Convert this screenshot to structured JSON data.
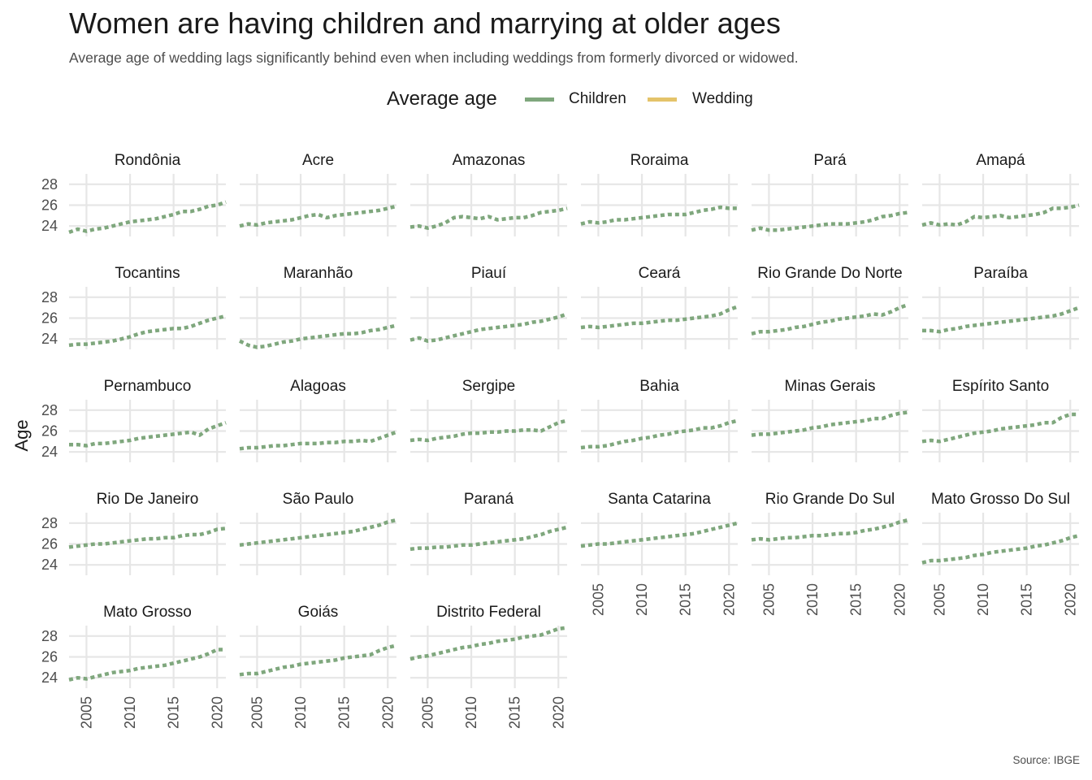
{
  "title": "Women are having children and marrying at older ages",
  "subtitle": "Average age of wedding lags significantly behind even when including weddings from formerly divorced or widowed.",
  "caption": "Source: IBGE",
  "legend": {
    "title": "Average age",
    "items": [
      {
        "label": "Children",
        "color": "#7fa77d"
      },
      {
        "label": "Wedding",
        "color": "#e4c36a"
      }
    ]
  },
  "chart_data": {
    "type": "line",
    "facet": "state",
    "ylabel": "Age",
    "xlabel": "",
    "ylim": [
      23,
      29
    ],
    "xlim": [
      2003,
      2021
    ],
    "x_ticks": [
      2005,
      2010,
      2015,
      2020
    ],
    "y_ticks": [
      24,
      26,
      28
    ],
    "grid": true,
    "legend_position": "top",
    "x": [
      2003,
      2004,
      2005,
      2006,
      2007,
      2008,
      2009,
      2010,
      2011,
      2012,
      2013,
      2014,
      2015,
      2016,
      2017,
      2018,
      2019,
      2020,
      2021
    ],
    "series_names": [
      "Children",
      "Wedding"
    ],
    "panels": [
      {
        "name": "Rondônia",
        "children": [
          23.4,
          23.7,
          23.5,
          23.7,
          23.8,
          24.0,
          24.2,
          24.4,
          24.5,
          24.6,
          24.7,
          24.9,
          25.1,
          25.4,
          25.4,
          25.6,
          25.9,
          26.0,
          26.3
        ]
      },
      {
        "name": "Acre",
        "children": [
          24.0,
          24.2,
          24.1,
          24.3,
          24.4,
          24.5,
          24.6,
          24.8,
          25.0,
          25.1,
          24.8,
          25.0,
          25.1,
          25.2,
          25.3,
          25.4,
          25.5,
          25.7,
          25.9
        ]
      },
      {
        "name": "Amazonas",
        "children": [
          23.9,
          24.0,
          23.8,
          24.0,
          24.3,
          24.8,
          24.9,
          24.8,
          24.7,
          24.9,
          24.6,
          24.7,
          24.8,
          24.8,
          25.0,
          25.3,
          25.4,
          25.5,
          25.7
        ]
      },
      {
        "name": "Roraima",
        "children": [
          24.2,
          24.4,
          24.3,
          24.4,
          24.6,
          24.6,
          24.7,
          24.8,
          24.9,
          25.0,
          25.1,
          25.1,
          25.1,
          25.3,
          25.5,
          25.6,
          25.8,
          25.7,
          25.7
        ]
      },
      {
        "name": "Pará",
        "children": [
          23.6,
          23.8,
          23.6,
          23.6,
          23.7,
          23.8,
          23.9,
          24.0,
          24.1,
          24.2,
          24.2,
          24.2,
          24.3,
          24.4,
          24.6,
          24.9,
          25.0,
          25.2,
          25.3
        ]
      },
      {
        "name": "Amapá",
        "children": [
          24.1,
          24.3,
          24.1,
          24.2,
          24.1,
          24.4,
          24.9,
          24.8,
          24.9,
          25.0,
          24.8,
          24.9,
          25.0,
          25.1,
          25.3,
          25.7,
          25.7,
          25.8,
          26.0
        ]
      },
      {
        "name": "Tocantins",
        "children": [
          23.4,
          23.5,
          23.5,
          23.6,
          23.7,
          23.8,
          24.0,
          24.2,
          24.5,
          24.7,
          24.8,
          24.9,
          25.0,
          25.0,
          25.2,
          25.5,
          25.8,
          26.0,
          26.2
        ]
      },
      {
        "name": "Maranhão",
        "children": [
          23.8,
          23.4,
          23.2,
          23.3,
          23.5,
          23.7,
          23.8,
          24.0,
          24.1,
          24.2,
          24.3,
          24.4,
          24.5,
          24.5,
          24.6,
          24.8,
          24.9,
          25.1,
          25.3
        ]
      },
      {
        "name": "Piauí",
        "children": [
          23.9,
          24.1,
          23.8,
          23.9,
          24.1,
          24.3,
          24.5,
          24.7,
          24.9,
          25.0,
          25.1,
          25.2,
          25.3,
          25.4,
          25.6,
          25.7,
          25.9,
          26.1,
          26.4
        ]
      },
      {
        "name": "Ceará",
        "children": [
          25.1,
          25.2,
          25.1,
          25.2,
          25.3,
          25.4,
          25.5,
          25.5,
          25.6,
          25.7,
          25.8,
          25.8,
          25.9,
          26.0,
          26.1,
          26.2,
          26.4,
          26.8,
          27.1
        ]
      },
      {
        "name": "Rio Grande Do Norte",
        "children": [
          24.5,
          24.7,
          24.7,
          24.8,
          24.9,
          25.1,
          25.2,
          25.4,
          25.6,
          25.7,
          25.9,
          26.0,
          26.1,
          26.2,
          26.4,
          26.3,
          26.6,
          27.0,
          27.3
        ]
      },
      {
        "name": "Paraíba",
        "children": [
          24.8,
          24.8,
          24.7,
          24.9,
          25.0,
          25.2,
          25.3,
          25.4,
          25.5,
          25.6,
          25.7,
          25.8,
          25.9,
          26.0,
          26.1,
          26.2,
          26.4,
          26.7,
          27.0
        ]
      },
      {
        "name": "Pernambuco",
        "children": [
          24.7,
          24.7,
          24.6,
          24.8,
          24.8,
          24.9,
          25.0,
          25.1,
          25.3,
          25.4,
          25.5,
          25.6,
          25.7,
          25.8,
          25.9,
          25.6,
          26.2,
          26.5,
          26.8
        ]
      },
      {
        "name": "Alagoas",
        "children": [
          24.3,
          24.4,
          24.4,
          24.5,
          24.6,
          24.6,
          24.7,
          24.8,
          24.8,
          24.8,
          24.9,
          24.9,
          25.0,
          25.0,
          25.1,
          25.0,
          25.3,
          25.6,
          25.9
        ]
      },
      {
        "name": "Sergipe",
        "children": [
          25.1,
          25.2,
          25.1,
          25.3,
          25.4,
          25.5,
          25.7,
          25.8,
          25.8,
          25.9,
          25.9,
          26.0,
          26.0,
          26.1,
          26.1,
          26.0,
          26.4,
          26.8,
          27.0
        ]
      },
      {
        "name": "Bahia",
        "children": [
          24.4,
          24.5,
          24.5,
          24.6,
          24.8,
          25.0,
          25.1,
          25.3,
          25.4,
          25.6,
          25.7,
          25.9,
          26.0,
          26.1,
          26.3,
          26.3,
          26.5,
          26.8,
          27.0
        ]
      },
      {
        "name": "Minas Gerais",
        "children": [
          25.6,
          25.7,
          25.7,
          25.8,
          25.9,
          26.0,
          26.1,
          26.3,
          26.4,
          26.6,
          26.7,
          26.8,
          26.9,
          27.0,
          27.2,
          27.2,
          27.5,
          27.7,
          27.8
        ]
      },
      {
        "name": "Espírito Santo",
        "children": [
          25.0,
          25.1,
          25.0,
          25.2,
          25.4,
          25.6,
          25.8,
          25.9,
          26.0,
          26.2,
          26.3,
          26.4,
          26.5,
          26.6,
          26.8,
          26.8,
          27.3,
          27.6,
          27.6
        ]
      },
      {
        "name": "Rio De Janeiro",
        "children": [
          25.7,
          25.8,
          25.9,
          26.0,
          26.0,
          26.1,
          26.2,
          26.3,
          26.4,
          26.5,
          26.5,
          26.6,
          26.6,
          26.8,
          26.9,
          26.9,
          27.1,
          27.4,
          27.5
        ]
      },
      {
        "name": "São Paulo",
        "children": [
          25.9,
          26.0,
          26.1,
          26.2,
          26.3,
          26.4,
          26.5,
          26.6,
          26.7,
          26.8,
          26.9,
          27.0,
          27.1,
          27.2,
          27.4,
          27.6,
          27.8,
          28.1,
          28.3
        ]
      },
      {
        "name": "Paraná",
        "children": [
          25.5,
          25.6,
          25.6,
          25.7,
          25.7,
          25.8,
          25.9,
          25.9,
          26.0,
          26.1,
          26.2,
          26.3,
          26.4,
          26.5,
          26.7,
          26.9,
          27.2,
          27.4,
          27.6
        ]
      },
      {
        "name": "Santa Catarina",
        "children": [
          25.8,
          25.9,
          26.0,
          26.0,
          26.1,
          26.2,
          26.3,
          26.4,
          26.5,
          26.6,
          26.7,
          26.8,
          26.9,
          27.0,
          27.2,
          27.4,
          27.6,
          27.8,
          28.0
        ]
      },
      {
        "name": "Rio Grande Do Sul",
        "children": [
          26.4,
          26.5,
          26.4,
          26.5,
          26.6,
          26.6,
          26.7,
          26.8,
          26.8,
          26.9,
          27.0,
          27.0,
          27.1,
          27.3,
          27.4,
          27.6,
          27.8,
          28.1,
          28.3
        ]
      },
      {
        "name": "Mato Grosso Do Sul",
        "children": [
          24.2,
          24.4,
          24.4,
          24.5,
          24.6,
          24.7,
          24.9,
          25.0,
          25.2,
          25.3,
          25.4,
          25.5,
          25.6,
          25.8,
          25.9,
          26.1,
          26.3,
          26.6,
          26.8
        ]
      },
      {
        "name": "Mato Grosso",
        "children": [
          23.8,
          24.0,
          23.9,
          24.1,
          24.3,
          24.5,
          24.6,
          24.7,
          24.9,
          25.0,
          25.1,
          25.2,
          25.4,
          25.6,
          25.8,
          26.0,
          26.3,
          26.7,
          26.7
        ]
      },
      {
        "name": "Goiás",
        "children": [
          24.3,
          24.4,
          24.4,
          24.6,
          24.8,
          25.0,
          25.1,
          25.3,
          25.4,
          25.5,
          25.6,
          25.7,
          25.9,
          26.0,
          26.1,
          26.2,
          26.6,
          26.9,
          27.1
        ]
      },
      {
        "name": "Distrito Federal",
        "children": [
          25.8,
          26.0,
          26.1,
          26.3,
          26.5,
          26.7,
          26.9,
          27.0,
          27.2,
          27.3,
          27.5,
          27.6,
          27.7,
          27.9,
          28.0,
          28.1,
          28.4,
          28.7,
          28.8
        ]
      }
    ]
  }
}
